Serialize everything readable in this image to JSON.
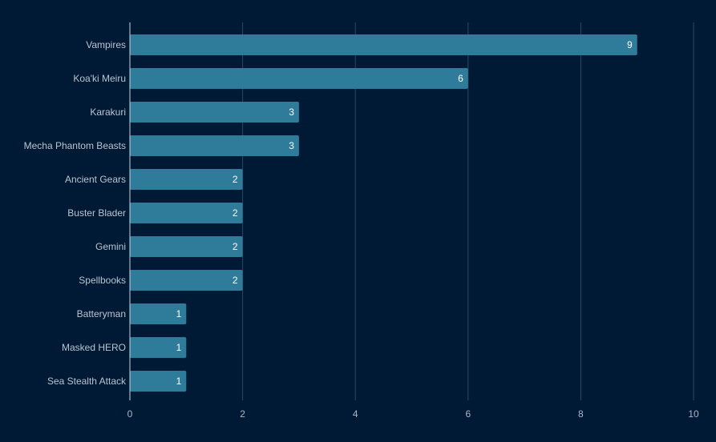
{
  "chart_data": {
    "type": "bar",
    "orientation": "horizontal",
    "categories": [
      "Vampires",
      "Koa'ki Meiru",
      "Karakuri",
      "Mecha Phantom Beasts",
      "Ancient Gears",
      "Buster Blader",
      "Gemini",
      "Spellbooks",
      "Batteryman",
      "Masked HERO",
      "Sea Stealth Attack"
    ],
    "values": [
      9,
      6,
      3,
      3,
      2,
      2,
      2,
      2,
      1,
      1,
      1
    ],
    "xlim": [
      0,
      10
    ],
    "xticks": [
      0,
      2,
      4,
      6,
      8,
      10
    ],
    "grid": true,
    "data_labels": true,
    "title": "",
    "xlabel": "",
    "ylabel": ""
  },
  "colors": {
    "background": "#001a36",
    "bar": "#2e7b9a",
    "grid": "#2f4760",
    "axis": "#c9d3dc"
  }
}
